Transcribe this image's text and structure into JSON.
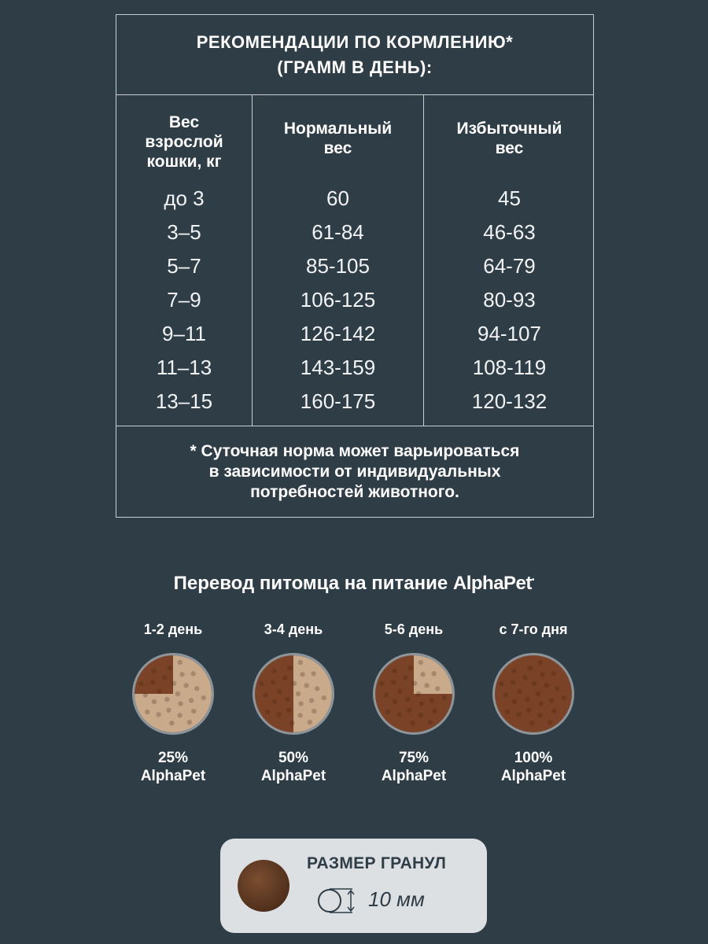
{
  "table": {
    "title_line1": "РЕКОМЕНДАЦИИ ПО КОРМЛЕНИЮ*",
    "title_line2": "(ГРАММ В ДЕНЬ):",
    "col1_header": [
      "Вес",
      "взрослой",
      "кошки, кг"
    ],
    "col2_header": [
      "Нормальный",
      "вес"
    ],
    "col3_header": [
      "Избыточный",
      "вес"
    ],
    "rows": [
      {
        "weight": "до 3",
        "normal": "60",
        "over": "45"
      },
      {
        "weight": "3–5",
        "normal": "61-84",
        "over": "46-63"
      },
      {
        "weight": "5–7",
        "normal": "85-105",
        "over": "64-79"
      },
      {
        "weight": "7–9",
        "normal": "106-125",
        "over": "80-93"
      },
      {
        "weight": "9–11",
        "normal": "126-142",
        "over": "94-107"
      },
      {
        "weight": "11–13",
        "normal": "143-159",
        "over": "108-119"
      },
      {
        "weight": "13–15",
        "normal": "160-175",
        "over": "120-132"
      }
    ],
    "note_line1": "* Суточная норма может варьироваться",
    "note_line2": "в зависимости от индивидуальных",
    "note_line3": "потребностей животного."
  },
  "transition": {
    "title": "Перевод питомца на питание",
    "brand": "AlphaPet",
    "steps": [
      {
        "day": "1-2 день",
        "percent": "25%",
        "brand": "AlphaPet",
        "share": 0.25
      },
      {
        "day": "3-4 день",
        "percent": "50%",
        "brand": "AlphaPet",
        "share": 0.5
      },
      {
        "day": "5-6 день",
        "percent": "75%",
        "brand": "AlphaPet",
        "share": 0.75
      },
      {
        "day": "с 7-го дня",
        "percent": "100%",
        "brand": "AlphaPet",
        "share": 1.0
      }
    ]
  },
  "granule": {
    "title": "РАЗМЕР ГРАНУЛ",
    "size": "10 мм"
  },
  "colors": {
    "background": "#2f3d47",
    "new_food": "#7a4226",
    "old_food": "#c9ab8c",
    "granule_box": "#dde0e3"
  }
}
